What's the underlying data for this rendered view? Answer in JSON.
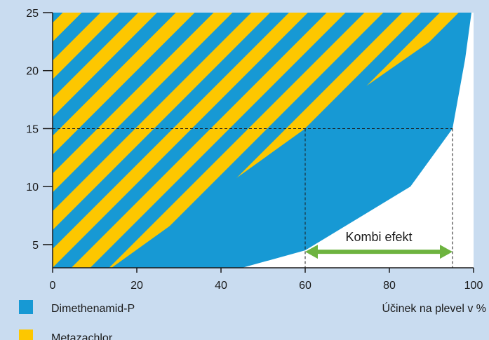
{
  "chart_data": {
    "type": "area",
    "title": "",
    "xlabel": "Účinek na plevel v %",
    "ylabel": "",
    "xlim": [
      0,
      100
    ],
    "ylim": [
      3,
      25
    ],
    "x_ticks": [
      "0",
      "20",
      "40",
      "60",
      "80",
      "100"
    ],
    "y_ticks": [
      "5",
      "10",
      "15",
      "20",
      "25"
    ],
    "series": [
      {
        "name": "Dimethenamid-P",
        "color": "#1799d4",
        "points": [
          [
            14,
            3
          ],
          [
            45,
            3
          ],
          [
            60,
            4.5
          ],
          [
            85,
            10
          ],
          [
            95,
            15
          ],
          [
            98,
            21
          ],
          [
            99.5,
            25
          ]
        ]
      },
      {
        "name": "Metazachlor",
        "color": "#fdc700",
        "pattern": "diagonal-stripes",
        "boundary": [
          [
            14,
            3
          ],
          [
            60,
            15
          ],
          [
            99.5,
            25
          ]
        ]
      }
    ],
    "annotations": {
      "text": "Kombi efekt",
      "arrow_from_x": 60,
      "arrow_to_x": 95,
      "arrow_y": 4.5,
      "arrow_color": "#6db33f",
      "reference_lines": {
        "y": 15,
        "x": [
          60,
          95
        ]
      }
    },
    "legend": {
      "placement": "bottom-left",
      "items": [
        {
          "label": "Dimethenamid-P",
          "color": "#1799d4"
        },
        {
          "label": "Metazachlor",
          "color": "#fdc700"
        }
      ]
    }
  }
}
